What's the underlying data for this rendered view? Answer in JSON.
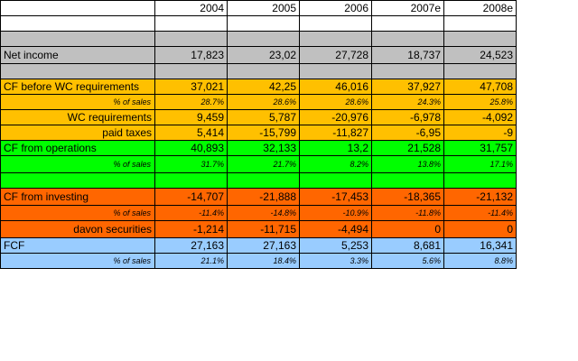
{
  "years": [
    "2004",
    "2005",
    "2006",
    "2007e",
    "2008e"
  ],
  "rows": [
    {
      "label": "Net income",
      "values": [
        "17,823",
        "23,02",
        "27,728",
        "18,737",
        "24,523"
      ]
    },
    {
      "label": "CF before WC requirements",
      "values": [
        "37,021",
        "42,25",
        "46,016",
        "37,927",
        "47,708"
      ]
    },
    {
      "label": "% of sales",
      "values": [
        "28.7%",
        "28.6%",
        "28.6%",
        "24.3%",
        "25.8%"
      ]
    },
    {
      "label": "WC requirements",
      "values": [
        "9,459",
        "5,787",
        "-20,976",
        "-6,978",
        "-4,092"
      ]
    },
    {
      "label": "paid taxes",
      "values": [
        "5,414",
        "-15,799",
        "-11,827",
        "-6,95",
        "-9"
      ]
    },
    {
      "label": "CF from operations",
      "values": [
        "40,893",
        "32,133",
        "13,2",
        "21,528",
        "31,757"
      ]
    },
    {
      "label": "% of sales",
      "values": [
        "31.7%",
        "21.7%",
        "8.2%",
        "13.8%",
        "17.1%"
      ]
    },
    {
      "label": "CF from investing",
      "values": [
        "-14,707",
        "-21,888",
        "-17,453",
        "-18,365",
        "-21,132"
      ]
    },
    {
      "label": "% of sales",
      "values": [
        "-11.4%",
        "-14.8%",
        "-10.9%",
        "-11.8%",
        "-11.4%"
      ]
    },
    {
      "label": "davon securities",
      "values": [
        "-1,214",
        "-11,715",
        "-4,494",
        "0",
        "0"
      ]
    },
    {
      "label": "FCF",
      "values": [
        "27,163",
        "27,163",
        "5,253",
        "8,681",
        "16,341"
      ]
    },
    {
      "label": "% of sales",
      "values": [
        "21.1%",
        "18.4%",
        "3.3%",
        "5.6%",
        "8.8%"
      ]
    }
  ],
  "colors": {
    "grey": "#c0c0c0",
    "yellow": "#ffc000",
    "green": "#00ff00",
    "orange": "#ff6600",
    "blue": "#99ccff"
  }
}
